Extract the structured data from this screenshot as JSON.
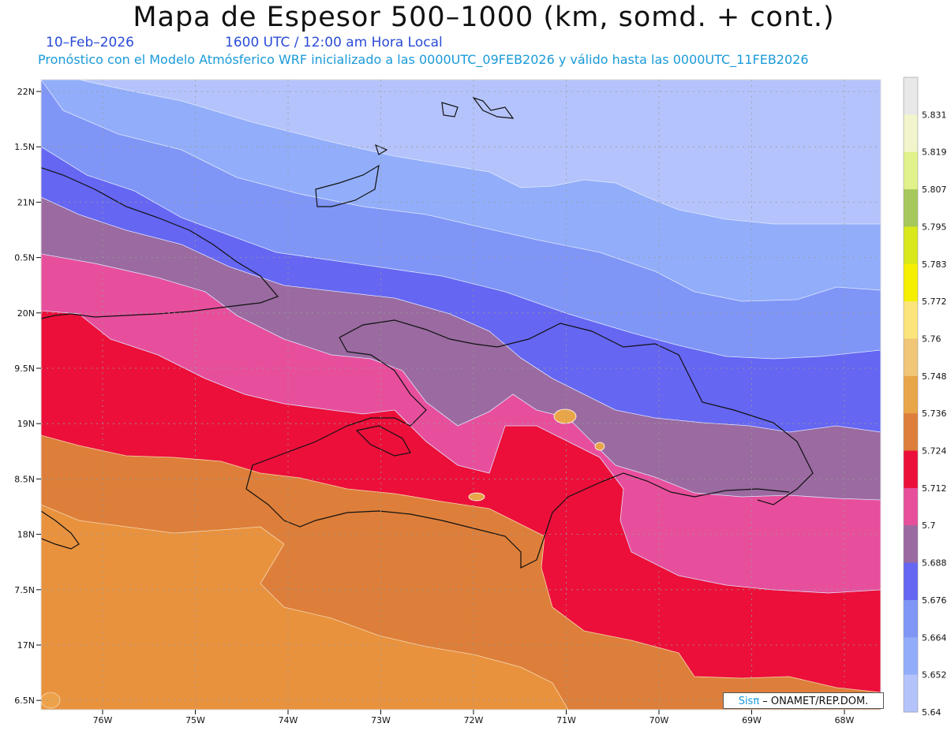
{
  "title": "Mapa de Espesor 500–1000 (km, somd. + cont.)",
  "date": "10–Feb–2026",
  "time_line": "1600 UTC / 12:00 am Hora Local",
  "forecast_line": "Pronóstico con el Modelo Atmósferico WRF inicializado a las 0000UTC_09FEB2026 y válido hasta las  0000UTC_11FEB2026",
  "credit": {
    "brand": "Sisπ",
    "rest": " – ONAMET/REP.DOM."
  },
  "lat_labels": [
    "22N",
    "1.5N",
    "21N",
    "0.5N",
    "20N",
    "9.5N",
    "19N",
    "8.5N",
    "18N",
    "7.5N",
    "17N",
    "6.5N"
  ],
  "lon_labels": [
    "76W",
    "75W",
    "74W",
    "73W",
    "72W",
    "71W",
    "70W",
    "69W",
    "68W"
  ],
  "colorbar": {
    "levels": [
      "5.831",
      "5.819",
      "5.807",
      "5.795",
      "5.783",
      "5.772",
      "5.76",
      "5.748",
      "5.736",
      "5.724",
      "5.712",
      "5.7",
      "5.688",
      "5.676",
      "5.664",
      "5.652",
      "5.64"
    ],
    "colors": [
      "#e8e8e8",
      "#f2f4cc",
      "#e2f28a",
      "#a6c85a",
      "#d8e81a",
      "#f5ef00",
      "#fbe57a",
      "#f1c677",
      "#e9a648",
      "#dd7f3a",
      "#ec0f3a",
      "#e74f9c",
      "#9a6aa0",
      "#6566f2",
      "#7f96f7",
      "#92aefa",
      "#b4c3fb"
    ]
  },
  "palette": {
    "band_1": "#b4c3fb",
    "band_2": "#92aefa",
    "band_3": "#7f96f7",
    "band_4": "#6566f2",
    "band_5": "#9a6aa0",
    "band_6": "#e74f9c",
    "band_7": "#ec0f3a",
    "band_8": "#dd7f3a",
    "band_9": "#e9923e"
  }
}
